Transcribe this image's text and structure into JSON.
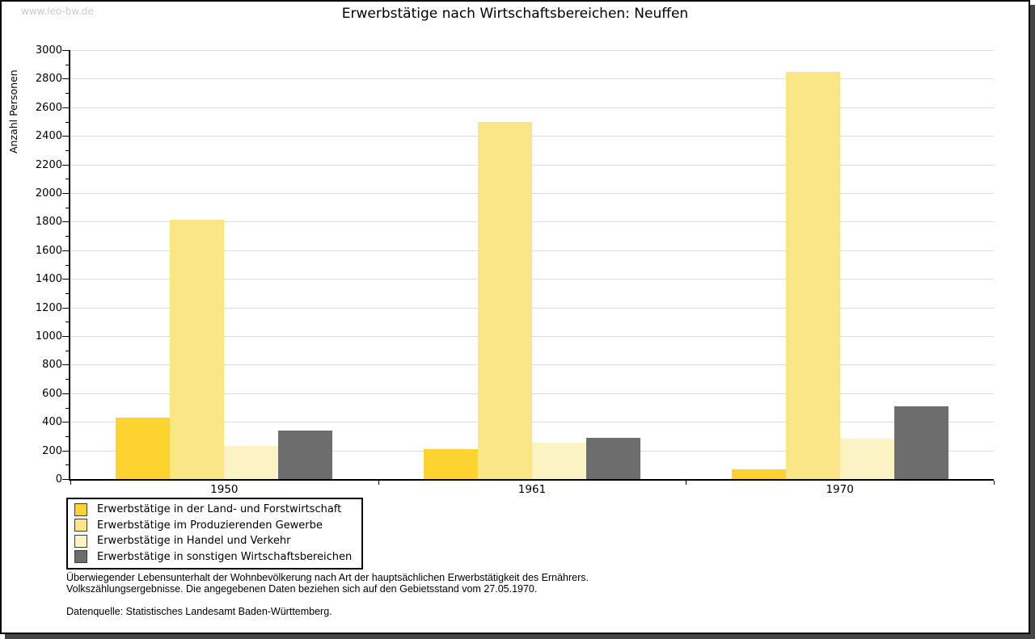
{
  "watermark": "www.leo-bw.de",
  "title": "Erwerbstätige nach Wirtschaftsbereichen: Neuffen",
  "chart_data": {
    "type": "bar",
    "title": "Erwerbstätige nach Wirtschaftsbereichen: Neuffen",
    "xlabel": "",
    "ylabel": "Anzahl Personen",
    "ylim": [
      0,
      3000
    ],
    "ytick_step": 200,
    "yminor_step": 100,
    "grid": true,
    "legend_position": "bottom-left",
    "categories": [
      "1950",
      "1961",
      "1970"
    ],
    "series": [
      {
        "name": "Erwerbstätige in der Land- und Forstwirtschaft",
        "color": "#FCD32F",
        "values": [
          430,
          210,
          70
        ]
      },
      {
        "name": "Erwerbstätige im Produzierenden Gewerbe",
        "color": "#FBE687",
        "values": [
          1815,
          2500,
          2850
        ]
      },
      {
        "name": "Erwerbstätige in Handel und Verkehr",
        "color": "#FBF3C4",
        "values": [
          230,
          255,
          285
        ]
      },
      {
        "name": "Erwerbstätige in sonstigen Wirtschaftsbereichen",
        "color": "#6D6D6D",
        "values": [
          340,
          290,
          510
        ]
      }
    ]
  },
  "footnotes": {
    "line1": "Überwiegender Lebensunterhalt der Wohnbevölkerung nach Art der hauptsächlichen Erwerbstätigkeit des Ernährers.",
    "line2": "Volkszählungsergebnisse. Die angegebenen Daten beziehen sich auf den Gebietsstand vom 27.05.1970.",
    "source": "Datenquelle: Statistisches Landesamt Baden-Württemberg."
  },
  "colors": {
    "grid": "#dcdcdc",
    "axis": "#000000",
    "watermark": "#cbcbcb",
    "shadow": "#454545",
    "legend_border": "#000000"
  }
}
